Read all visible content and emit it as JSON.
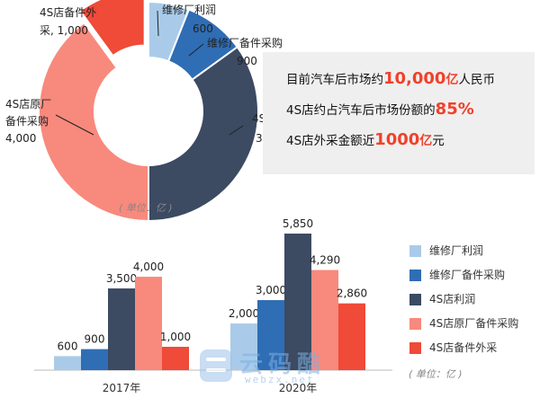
{
  "colors": {
    "repair_profit": "#a9cbe9",
    "repair_parts": "#2f6db5",
    "dealer_profit": "#3c4a62",
    "dealer_oem_parts": "#f8897d",
    "dealer_outsourced": "#f04a38"
  },
  "info": {
    "line1_prefix": "目前汽车后市场约",
    "line1_value": "10,000",
    "line1_unit": "亿",
    "line1_suffix": "人民币",
    "line2_prefix": "4S店约占汽车后市场份额的",
    "line2_value": "85%",
    "line3_prefix": "4S店外采金额近",
    "line3_value": "1000",
    "line3_unit": "亿",
    "line3_suffix": "元"
  },
  "unit_label_top": "( 单位：亿 )",
  "unit_label_bottom": "( 单位：亿 )",
  "watermark": {
    "title": "云码酷",
    "url": "webzx.net"
  },
  "chart_data": [
    {
      "type": "pie",
      "donut": true,
      "slices": [
        {
          "name": "维修厂利润",
          "value": 600,
          "label_line1": "维修厂利润",
          "label_line2": "600",
          "color": "#a9cbe9"
        },
        {
          "name": "维修厂备件采购",
          "value": 900,
          "label_line1": "维修厂备件采购",
          "label_line2": "900",
          "color": "#2f6db5"
        },
        {
          "name": "4S店利润",
          "value": 3500,
          "label_line1": "4S店利润",
          "label_line2": "3,500",
          "color": "#3c4a62"
        },
        {
          "name": "4S店原厂备件采购",
          "value": 4000,
          "label_line1": "4S店原厂",
          "label_line2": "备件采购",
          "label_line3": "4,000",
          "color": "#f8897d"
        },
        {
          "name": "4S店备件外采",
          "value": 1000,
          "label_line1": "4S店备件外",
          "label_line2": "采, 1,000",
          "exploded": true,
          "color": "#f04a38"
        }
      ]
    },
    {
      "type": "bar",
      "categories": [
        "2017年",
        "2020年"
      ],
      "series": [
        {
          "name": "维修厂利润",
          "values": [
            600,
            2000
          ],
          "labels": [
            "600",
            "2,000"
          ],
          "color": "#a9cbe9"
        },
        {
          "name": "维修厂备件采购",
          "values": [
            900,
            3000
          ],
          "labels": [
            "900",
            "3,000"
          ],
          "color": "#2f6db5"
        },
        {
          "name": "4S店利润",
          "values": [
            3500,
            5850
          ],
          "labels": [
            "3,500",
            "5,850"
          ],
          "color": "#3c4a62"
        },
        {
          "name": "4S店原厂备件采购",
          "values": [
            4000,
            4290
          ],
          "labels": [
            "4,000",
            "4,290"
          ],
          "color": "#f8897d"
        },
        {
          "name": "4S店备件外采",
          "values": [
            1000,
            2860
          ],
          "labels": [
            "1,000",
            "2,860"
          ],
          "color": "#f04a38"
        }
      ],
      "legend_position": "right",
      "grid": false,
      "ylim": [
        0,
        6000
      ]
    }
  ]
}
